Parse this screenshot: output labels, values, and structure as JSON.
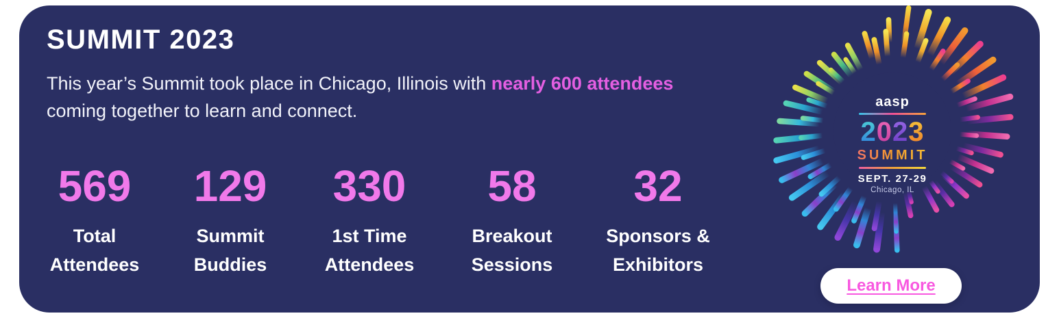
{
  "card": {
    "bg_color": "#2a2f63",
    "page_bg": "#ffffff"
  },
  "header": {
    "title": "SUMMIT 2023"
  },
  "intro": {
    "before": "This year’s Summit took place in Chicago, Illinois with ",
    "highlight": "nearly 600 attendees",
    "after": " coming together to learn and connect."
  },
  "stats": [
    {
      "value": "569",
      "label": "Total\nAttendees"
    },
    {
      "value": "129",
      "label": "Summit\nBuddies"
    },
    {
      "value": "330",
      "label": "1st Time\nAttendees"
    },
    {
      "value": "58",
      "label": "Breakout\nSessions"
    },
    {
      "value": "32",
      "label": "Sponsors &\nExhibitors"
    }
  ],
  "colors": {
    "stat_number_pink": "#f179ea",
    "highlight_pink": "#e45fe2",
    "cta_link_pink": "#f858e0",
    "text_white": "#ffffff"
  },
  "logo": {
    "brand": "aasp",
    "year": "2023",
    "word": "SUMMIT",
    "dates": "SEPT. 27-29",
    "location": "Chicago, IL",
    "year_digit_gradients": [
      [
        "#4fd4d4",
        "#2f7fe0"
      ],
      [
        "#f06ab8",
        "#c23a9e"
      ],
      [
        "#9a6ae8",
        "#6a3ac2"
      ],
      [
        "#f5c63a",
        "#ef7d2b"
      ]
    ],
    "burst_bg_blend": "#2a2f63",
    "burst_palette": [
      {
        "from": -115,
        "to": -60,
        "a": [
          "#ef8f28",
          "#f5d944"
        ],
        "b": [
          "#f0a92e",
          "#f7e554"
        ]
      },
      {
        "from": -60,
        "to": -20,
        "a": [
          "#f2812b",
          "#ee3f8e"
        ],
        "b": [
          "#ee5f3a",
          "#f29a2f"
        ]
      },
      {
        "from": -20,
        "to": 40,
        "a": [
          "#7e2a9e",
          "#ef4f93"
        ],
        "b": [
          "#c2308f",
          "#f06ab0"
        ]
      },
      {
        "from": 40,
        "to": 80,
        "a": [
          "#5b2ea6",
          "#d63fb4"
        ],
        "b": [
          "#8a35c9",
          "#e84fa8"
        ]
      },
      {
        "from": 80,
        "to": 120,
        "a": [
          "#4535a8",
          "#8f46d9"
        ],
        "b": [
          "#2f86d6",
          "#8a3fc9",
          "#38bdee"
        ]
      },
      {
        "from": 120,
        "to": 165,
        "a": [
          "#2f86d6",
          "#8a3fc9",
          "#38bdee"
        ],
        "b": [
          "#2b8fd9",
          "#45c8f0"
        ]
      },
      {
        "from": 165,
        "to": 200,
        "a": [
          "#2aa4cf",
          "#55d3b5"
        ],
        "b": [
          "#35b9dd",
          "#7ed9a0"
        ]
      },
      {
        "from": 200,
        "to": 245,
        "a": [
          "#49bd86",
          "#cfe049"
        ],
        "b": [
          "#8fd066",
          "#e8e04a"
        ]
      }
    ]
  },
  "cta": {
    "label": "Learn More"
  }
}
